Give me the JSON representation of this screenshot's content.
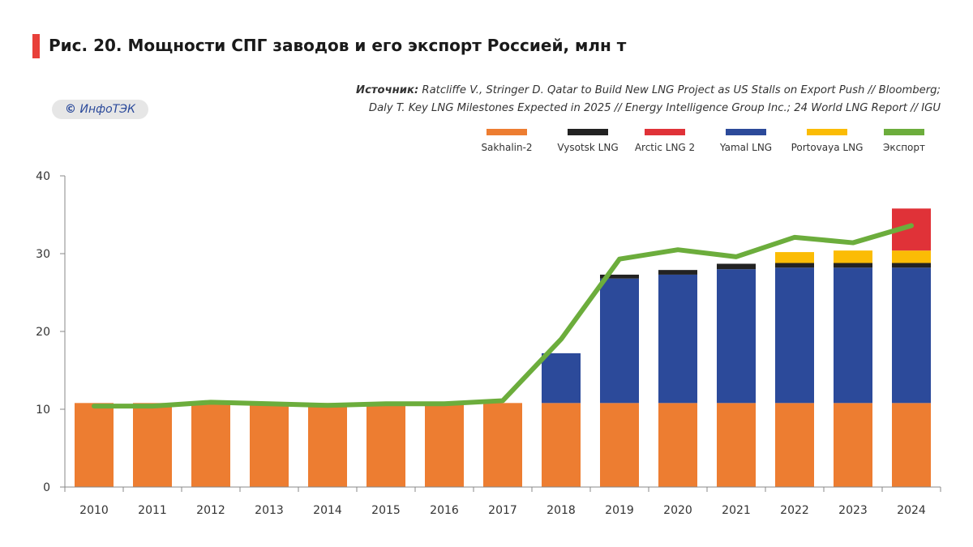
{
  "header": {
    "title": "Рис. 20. Мощности СПГ заводов и его экспорт Россией, млн т",
    "source_label": "Источник:",
    "source_line1": " Ratcliffe V., Stringer D. Qatar to Build New LNG Project as US Stalls on Export Push // Bloomberg;",
    "source_line2": "Daly T. Key LNG Milestones Expected in 2025 // Energy Intelligence Group Inc.; 24 World LNG Report // IGU",
    "logo_symbol": "©",
    "logo_text": "ИнфоТЭК"
  },
  "colors": {
    "title_accent": "#e8403a",
    "Sakhalin-2": "#ed7d31",
    "Vysotsk LNG": "#222222",
    "Arctic LNG 2": "#e03238",
    "Yamal LNG": "#2c4a9a",
    "Portovaya LNG": "#fbbc05",
    "Экспорт": "#6cad3c"
  },
  "chart_data": {
    "type": "bar",
    "stacked": true,
    "title": "Рис. 20. Мощности СПГ заводов и его экспорт Россией, млн т",
    "xlabel": "",
    "ylabel": "",
    "ylim": [
      0,
      40
    ],
    "yticks": [
      0,
      10,
      20,
      30,
      40
    ],
    "legend_position": "top-right",
    "categories": [
      "2010",
      "2011",
      "2012",
      "2013",
      "2014",
      "2015",
      "2016",
      "2017",
      "2018",
      "2019",
      "2020",
      "2021",
      "2022",
      "2023",
      "2024"
    ],
    "series": [
      {
        "name": "Sakhalin-2",
        "type": "bar",
        "values": [
          10.8,
          10.8,
          10.8,
          10.8,
          10.8,
          10.8,
          10.8,
          10.8,
          10.8,
          10.8,
          10.8,
          10.8,
          10.8,
          10.8,
          10.8
        ]
      },
      {
        "name": "Yamal LNG",
        "type": "bar",
        "values": [
          0,
          0,
          0,
          0,
          0,
          0,
          0,
          0,
          6.4,
          16.0,
          16.5,
          17.2,
          17.4,
          17.4,
          17.4
        ]
      },
      {
        "name": "Vysotsk LNG",
        "type": "bar",
        "values": [
          0,
          0,
          0,
          0,
          0,
          0,
          0,
          0,
          0,
          0.5,
          0.6,
          0.7,
          0.6,
          0.6,
          0.6
        ]
      },
      {
        "name": "Portovaya LNG",
        "type": "bar",
        "values": [
          0,
          0,
          0,
          0,
          0,
          0,
          0,
          0,
          0,
          0,
          0,
          0,
          1.4,
          1.6,
          1.6
        ]
      },
      {
        "name": "Arctic LNG 2",
        "type": "bar",
        "values": [
          0,
          0,
          0,
          0,
          0,
          0,
          0,
          0,
          0,
          0,
          0,
          0,
          0,
          0,
          5.4
        ]
      },
      {
        "name": "Экспорт",
        "type": "line",
        "values": [
          10.4,
          10.4,
          10.9,
          10.7,
          10.5,
          10.7,
          10.7,
          11.1,
          19.0,
          29.3,
          30.5,
          29.6,
          32.1,
          31.4,
          33.6
        ]
      }
    ],
    "legend_order": [
      "Sakhalin-2",
      "Vysotsk LNG",
      "Arctic LNG 2",
      "Yamal LNG",
      "Portovaya LNG",
      "Экспорт"
    ]
  }
}
